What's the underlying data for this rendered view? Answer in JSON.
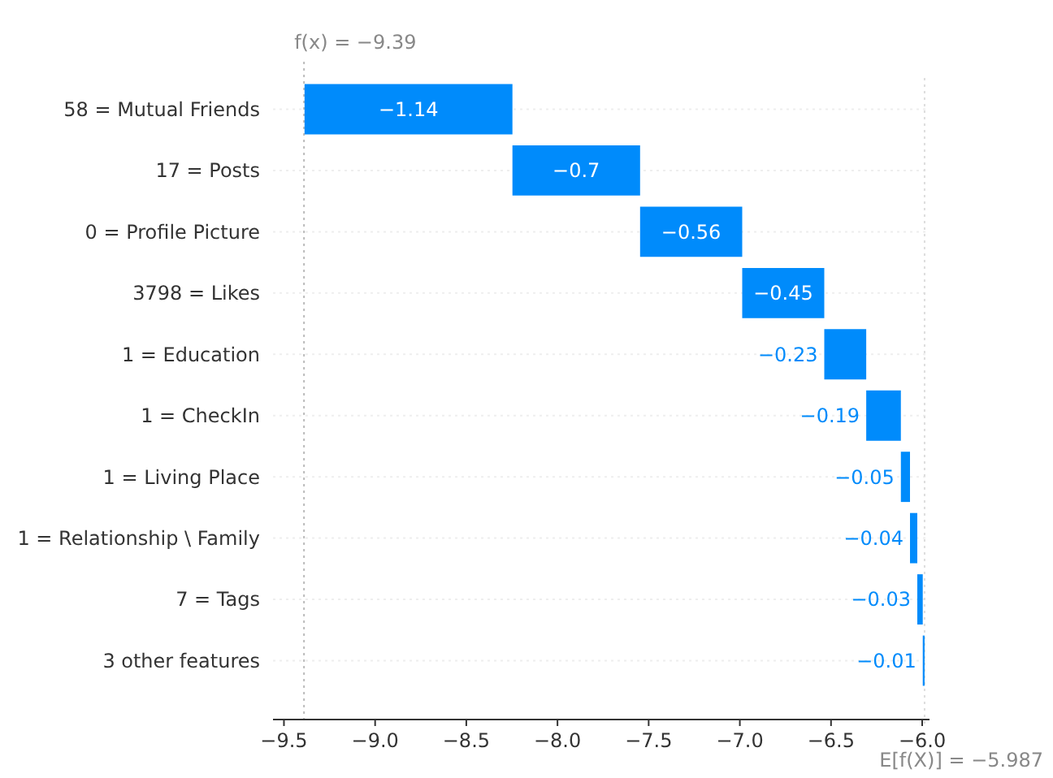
{
  "chart_data": {
    "type": "bar",
    "orientation": "horizontal",
    "categories": [
      "58 = Mutual Friends",
      "17 = Posts",
      "0 = Profile Picture",
      "3798 = Likes",
      "1 = Education",
      "1 = CheckIn",
      "1 = Living Place",
      "1 = Relationship \\ Family",
      "7 = Tags",
      "3 other features"
    ],
    "values": [
      -1.14,
      -0.7,
      -0.56,
      -0.45,
      -0.23,
      -0.19,
      -0.05,
      -0.04,
      -0.03,
      -0.01
    ],
    "base": [
      -8.247,
      -7.547,
      -6.987,
      -6.537,
      -6.307,
      -6.117,
      -6.067,
      -6.027,
      -5.997,
      -5.987
    ],
    "value_labels": [
      "−1.14",
      "−0.7",
      "−0.56",
      "−0.45",
      "−0.23",
      "−0.19",
      "−0.05",
      "−0.04",
      "−0.03",
      "−0.01"
    ],
    "color": "#008bfb",
    "xlim": [
      -9.56,
      -5.96
    ],
    "xticks": [
      {
        "value": -9.5,
        "label": "−9.5"
      },
      {
        "value": -9.0,
        "label": "−9.0"
      },
      {
        "value": -8.5,
        "label": "−8.5"
      },
      {
        "value": -8.0,
        "label": "−8.0"
      },
      {
        "value": -7.5,
        "label": "−7.5"
      },
      {
        "value": -7.0,
        "label": "−7.0"
      },
      {
        "value": -6.5,
        "label": "−6.5"
      },
      {
        "value": -6.0,
        "label": "−6.0"
      }
    ],
    "ref_lines": [
      {
        "axis": "x",
        "value": -9.39,
        "label": "f(x) = −9.39",
        "color": "#bbbbbb",
        "line_style": "dotted"
      },
      {
        "axis": "x",
        "value": -5.987,
        "label": "E[f(X)] = −5.987",
        "color": "#dddddd",
        "line_style": "dotted"
      }
    ],
    "grid": "y"
  }
}
